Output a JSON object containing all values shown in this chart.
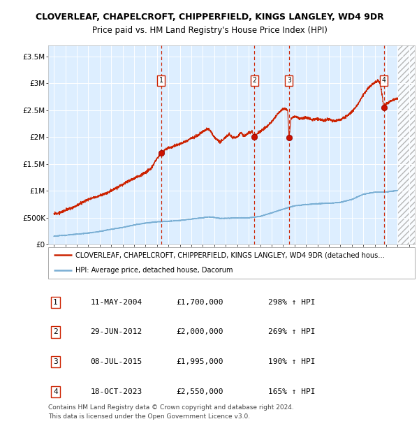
{
  "title_line1": "CLOVERLEAF, CHAPELCROFT, CHIPPERFIELD, KINGS LANGLEY, WD4 9DR",
  "title_line2": "Price paid vs. HM Land Registry's House Price Index (HPI)",
  "background_color": "#ddeeff",
  "red_line_color": "#cc2200",
  "blue_line_color": "#7aafd4",
  "sale_points": [
    {
      "date_num": 2004.36,
      "price": 1700000,
      "label": "1",
      "date_str": "11-MAY-2004",
      "pct": "298% ↑ HPI"
    },
    {
      "date_num": 2012.49,
      "price": 2000000,
      "label": "2",
      "date_str": "29-JUN-2012",
      "pct": "269% ↑ HPI"
    },
    {
      "date_num": 2015.52,
      "price": 1995000,
      "label": "3",
      "date_str": "08-JUL-2015",
      "pct": "190% ↑ HPI"
    },
    {
      "date_num": 2023.8,
      "price": 2550000,
      "label": "4",
      "date_str": "18-OCT-2023",
      "pct": "165% ↑ HPI"
    }
  ],
  "ylim": [
    0,
    3700000
  ],
  "xlim": [
    1994.5,
    2026.5
  ],
  "yticks": [
    0,
    500000,
    1000000,
    1500000,
    2000000,
    2500000,
    3000000,
    3500000
  ],
  "ytick_labels": [
    "£0",
    "£500K",
    "£1M",
    "£1.5M",
    "£2M",
    "£2.5M",
    "£3M",
    "£3.5M"
  ],
  "xticks": [
    1995,
    1996,
    1997,
    1998,
    1999,
    2000,
    2001,
    2002,
    2003,
    2004,
    2005,
    2006,
    2007,
    2008,
    2009,
    2010,
    2011,
    2012,
    2013,
    2014,
    2015,
    2016,
    2017,
    2018,
    2019,
    2020,
    2021,
    2022,
    2023,
    2024,
    2025,
    2026
  ],
  "legend_red": "CLOVERLEAF, CHAPELCROFT, CHIPPERFIELD, KINGS LANGLEY, WD4 9DR (detached hous…",
  "legend_blue": "HPI: Average price, detached house, Dacorum",
  "table_data": [
    [
      "1",
      "11-MAY-2004",
      "£1,700,000",
      "298% ↑ HPI"
    ],
    [
      "2",
      "29-JUN-2012",
      "£2,000,000",
      "269% ↑ HPI"
    ],
    [
      "3",
      "08-JUL-2015",
      "£1,995,000",
      "190% ↑ HPI"
    ],
    [
      "4",
      "18-OCT-2023",
      "£2,550,000",
      "165% ↑ HPI"
    ]
  ],
  "footer": "Contains HM Land Registry data © Crown copyright and database right 2024.\nThis data is licensed under the Open Government Licence v3.0."
}
